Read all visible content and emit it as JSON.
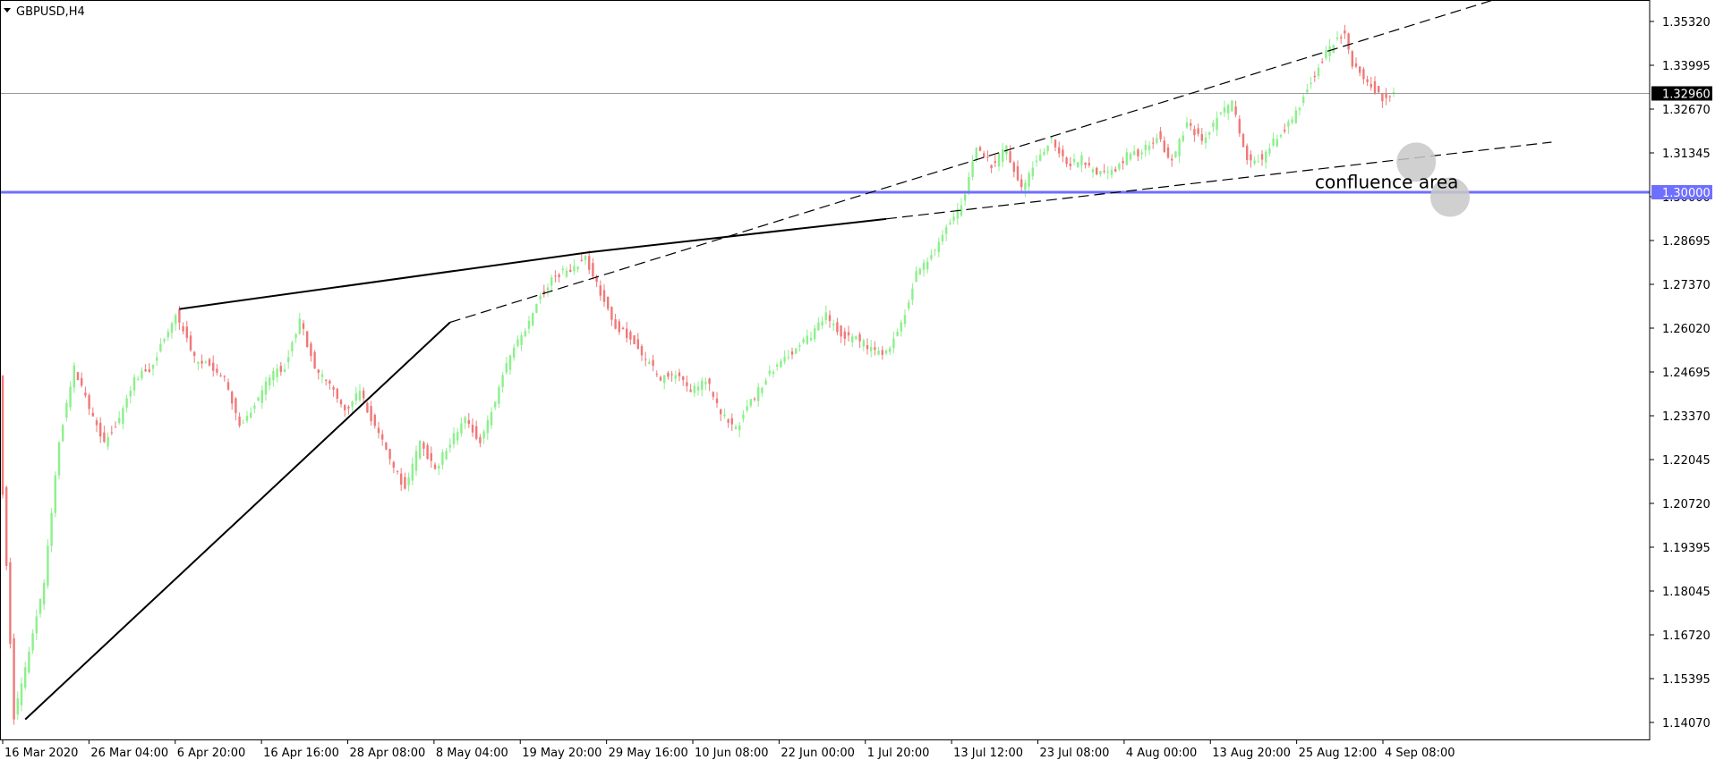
{
  "header": {
    "symbol_label": "GBPUSD,H4",
    "menu_icon": "triangle-down-icon"
  },
  "colors": {
    "background": "#ffffff",
    "frame": "#000000",
    "bull_candle": "#8cf08c",
    "bear_candle": "#f07878",
    "current_price_line": "#9a9a9a",
    "support_line": "#6f6fff",
    "support_badge_bg": "#6f6fff",
    "current_badge_bg": "#000000",
    "trendline": "#000000",
    "circle_fill": "#c8c8c8"
  },
  "chart_data": {
    "type": "candlestick",
    "symbol": "GBPUSD",
    "timeframe": "H4",
    "y_ticks": [
      "1.35320",
      "1.33995",
      "1.32670",
      "1.31345",
      "1.30000",
      "1.28695",
      "1.27370",
      "1.26020",
      "1.24695",
      "1.23370",
      "1.22045",
      "1.20720",
      "1.19395",
      "1.18045",
      "1.16720",
      "1.15395",
      "1.14070"
    ],
    "x_ticks": [
      "16 Mar 2020",
      "26 Mar 04:00",
      "6 Apr 20:00",
      "16 Apr 16:00",
      "28 Apr 08:00",
      "8 May 04:00",
      "19 May 20:00",
      "29 May 16:00",
      "10 Jun 08:00",
      "22 Jun 00:00",
      "1 Jul 20:00",
      "13 Jul 12:00",
      "23 Jul 08:00",
      "4 Aug 00:00",
      "13 Aug 20:00",
      "25 Aug 12:00",
      "4 Sep 08:00"
    ],
    "ylim": [
      1.136,
      1.3576
    ],
    "current_price": {
      "label": "1.32960",
      "value": 1.3296
    },
    "support_level": {
      "label": "1.30000",
      "value": 1.3
    },
    "path_points": [
      [
        0,
        1.244
      ],
      [
        1,
        1.21
      ],
      [
        4,
        1.143
      ],
      [
        8,
        1.162
      ],
      [
        12,
        1.183
      ],
      [
        16,
        1.226
      ],
      [
        20,
        1.247
      ],
      [
        24,
        1.235
      ],
      [
        28,
        1.225
      ],
      [
        32,
        1.232
      ],
      [
        36,
        1.244
      ],
      [
        40,
        1.247
      ],
      [
        44,
        1.256
      ],
      [
        47,
        1.264
      ],
      [
        52,
        1.25
      ],
      [
        56,
        1.248
      ],
      [
        60,
        1.244
      ],
      [
        64,
        1.23
      ],
      [
        68,
        1.236
      ],
      [
        72,
        1.245
      ],
      [
        76,
        1.248
      ],
      [
        80,
        1.262
      ],
      [
        84,
        1.247
      ],
      [
        88,
        1.242
      ],
      [
        92,
        1.235
      ],
      [
        96,
        1.24
      ],
      [
        100,
        1.23
      ],
      [
        104,
        1.22
      ],
      [
        108,
        1.211
      ],
      [
        112,
        1.225
      ],
      [
        116,
        1.217
      ],
      [
        120,
        1.225
      ],
      [
        124,
        1.233
      ],
      [
        128,
        1.225
      ],
      [
        132,
        1.237
      ],
      [
        136,
        1.252
      ],
      [
        140,
        1.258
      ],
      [
        144,
        1.269
      ],
      [
        148,
        1.275
      ],
      [
        152,
        1.277
      ],
      [
        156,
        1.28
      ],
      [
        160,
        1.27
      ],
      [
        164,
        1.26
      ],
      [
        168,
        1.256
      ],
      [
        172,
        1.25
      ],
      [
        176,
        1.244
      ],
      [
        180,
        1.246
      ],
      [
        184,
        1.24
      ],
      [
        188,
        1.244
      ],
      [
        192,
        1.234
      ],
      [
        196,
        1.229
      ],
      [
        200,
        1.237
      ],
      [
        204,
        1.244
      ],
      [
        208,
        1.25
      ],
      [
        212,
        1.253
      ],
      [
        216,
        1.257
      ],
      [
        220,
        1.263
      ],
      [
        224,
        1.257
      ],
      [
        228,
        1.256
      ],
      [
        232,
        1.253
      ],
      [
        236,
        1.252
      ],
      [
        240,
        1.26
      ],
      [
        244,
        1.276
      ],
      [
        248,
        1.281
      ],
      [
        252,
        1.29
      ],
      [
        256,
        1.296
      ],
      [
        260,
        1.313
      ],
      [
        264,
        1.308
      ],
      [
        268,
        1.313
      ],
      [
        272,
        1.301
      ],
      [
        276,
        1.31
      ],
      [
        280,
        1.316
      ],
      [
        284,
        1.308
      ],
      [
        288,
        1.31
      ],
      [
        292,
        1.305
      ],
      [
        296,
        1.306
      ],
      [
        300,
        1.311
      ],
      [
        304,
        1.312
      ],
      [
        308,
        1.317
      ],
      [
        312,
        1.309
      ],
      [
        316,
        1.321
      ],
      [
        320,
        1.315
      ],
      [
        324,
        1.322
      ],
      [
        328,
        1.327
      ],
      [
        332,
        1.31
      ],
      [
        336,
        1.31
      ],
      [
        340,
        1.317
      ],
      [
        344,
        1.321
      ],
      [
        348,
        1.331
      ],
      [
        352,
        1.34
      ],
      [
        356,
        1.346
      ],
      [
        358,
        1.348
      ],
      [
        360,
        1.338
      ],
      [
        364,
        1.333
      ],
      [
        368,
        1.328
      ],
      [
        370,
        1.3296
      ]
    ],
    "trendlines": [
      {
        "name": "lower-rising-trendline",
        "style": "solid",
        "from": [
          6,
          1.142
        ],
        "to": [
          119,
          1.261
        ]
      },
      {
        "name": "lower-trendline-extension",
        "style": "dashed",
        "from": [
          119,
          1.261
        ],
        "to": [
          412,
          1.363
        ]
      },
      {
        "name": "upper-trendline",
        "style": "solid",
        "from": [
          47,
          1.265
        ],
        "to": [
          156,
          1.282
        ]
      },
      {
        "name": "upper-trendline-segment",
        "style": "solid",
        "from": [
          156,
          1.282
        ],
        "to": [
          235,
          1.292
        ]
      },
      {
        "name": "upper-trendline-extension",
        "style": "dashed",
        "from": [
          235,
          1.292
        ],
        "to": [
          412,
          1.315
        ]
      }
    ],
    "annotation": {
      "text": "confluence area"
    },
    "circles": [
      {
        "name": "upper-confluence-circle",
        "center": [
          376,
          1.309
        ]
      },
      {
        "name": "lower-confluence-circle",
        "center": [
          385,
          1.2985
        ]
      }
    ]
  }
}
